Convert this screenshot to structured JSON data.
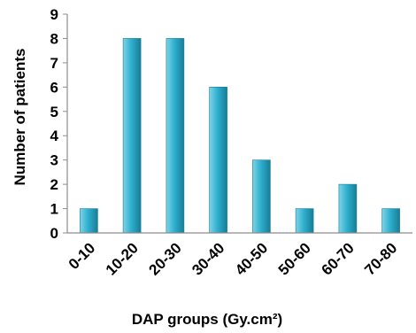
{
  "chart_data": {
    "type": "bar",
    "title": "",
    "xlabel": "DAP groups (Gy.cm²)",
    "ylabel": "Number of patients",
    "categories": [
      "0-10",
      "10-20",
      "20-30",
      "30-40",
      "40-50",
      "50-60",
      "60-70",
      "70-80"
    ],
    "values": [
      1,
      8,
      8,
      6,
      3,
      1,
      2,
      1
    ],
    "ylim": [
      0,
      9
    ],
    "yticks": [
      0,
      1,
      2,
      3,
      4,
      5,
      6,
      7,
      8,
      9
    ],
    "grid": false,
    "legend": "none",
    "colors": {
      "bar_light": "#7fd3e6",
      "bar_mid": "#2fb0cf",
      "bar_dark": "#177d96",
      "axis": "#8c8c8c"
    }
  }
}
